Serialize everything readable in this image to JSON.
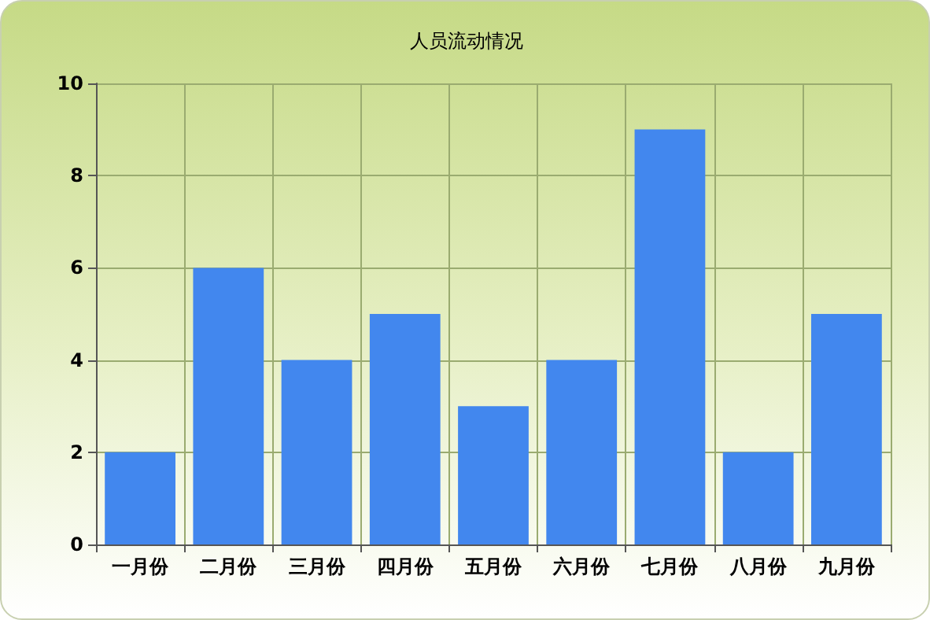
{
  "chart_data": {
    "type": "bar",
    "title": "人员流动情况",
    "categories": [
      "一月份",
      "二月份",
      "三月份",
      "四月份",
      "五月份",
      "六月份",
      "七月份",
      "八月份",
      "九月份"
    ],
    "values": [
      2,
      6,
      4,
      5,
      3,
      4,
      9,
      2,
      5
    ],
    "color": "#4287ee",
    "ylim": [
      0,
      10
    ],
    "yticks": [
      0,
      2,
      4,
      6,
      8,
      10
    ],
    "grid": true
  }
}
